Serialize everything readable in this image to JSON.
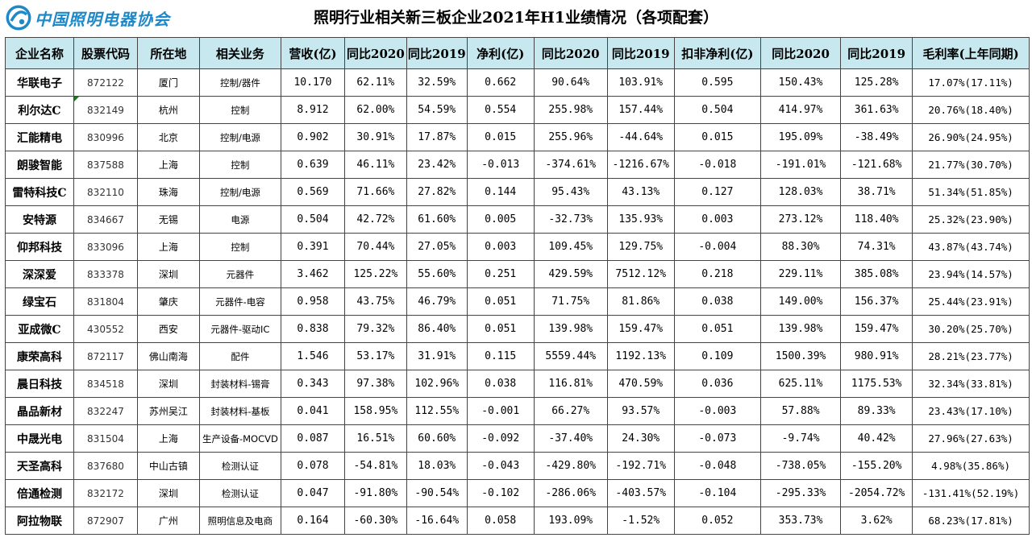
{
  "header": {
    "logo_text": "中国照明电器协会",
    "title": "照明行业相关新三板企业2021年H1业绩情况（各项配套）"
  },
  "colors": {
    "increase": "#ff0000",
    "decrease": "#0a8a0a",
    "header_bg": "#c6e8ee",
    "logo": "#1e88c8"
  },
  "columns": [
    "企业名称",
    "股票代码",
    "所在地",
    "相关业务",
    "营收(亿)",
    "同比2020",
    "同比2019",
    "净利(亿)",
    "同比2020",
    "同比2019",
    "扣非净利(亿)",
    "同比2020",
    "同比2019",
    "毛利率(上年同期)"
  ],
  "rows": [
    {
      "name": "华联电子",
      "code": "872122",
      "city": "厦门",
      "biz": "控制/器件",
      "rev": "10.170",
      "rev20": "62.11%",
      "rev19": "32.59%",
      "np": "0.662",
      "np20": "90.64%",
      "np19": "103.91%",
      "dnp": "0.595",
      "dnp20": "150.43%",
      "dnp19": "125.28%",
      "gm": "17.07%(17.11%)"
    },
    {
      "name": "利尔达C",
      "code": "832149",
      "city": "杭州",
      "biz": "控制",
      "rev": "8.912",
      "rev20": "62.00%",
      "rev19": "54.59%",
      "np": "0.554",
      "np20": "255.98%",
      "np19": "157.44%",
      "dnp": "0.504",
      "dnp20": "414.97%",
      "dnp19": "361.63%",
      "gm": "20.76%(18.40%)"
    },
    {
      "name": "汇能精电",
      "code": "830996",
      "city": "北京",
      "biz": "控制/电源",
      "rev": "0.902",
      "rev20": "30.91%",
      "rev19": "17.87%",
      "np": "0.015",
      "np20": "255.96%",
      "np19": "-44.64%",
      "dnp": "0.015",
      "dnp20": "195.09%",
      "dnp19": "-38.49%",
      "gm": "26.90%(24.95%)"
    },
    {
      "name": "朗骏智能",
      "code": "837588",
      "city": "上海",
      "biz": "控制",
      "rev": "0.639",
      "rev20": "46.11%",
      "rev19": "23.42%",
      "np": "-0.013",
      "np20": "-374.61%",
      "np19": "-1216.67%",
      "dnp": "-0.018",
      "dnp20": "-191.01%",
      "dnp19": "-121.68%",
      "gm": "21.77%(30.70%)"
    },
    {
      "name": "雷特科技C",
      "code": "832110",
      "city": "珠海",
      "biz": "控制/电源",
      "rev": "0.569",
      "rev20": "71.66%",
      "rev19": "27.82%",
      "np": "0.144",
      "np20": "95.43%",
      "np19": "43.13%",
      "dnp": "0.127",
      "dnp20": "128.03%",
      "dnp19": "38.71%",
      "gm": "51.34%(51.85%)"
    },
    {
      "name": "安特源",
      "code": "834667",
      "city": "无锡",
      "biz": "电源",
      "rev": "0.504",
      "rev20": "42.72%",
      "rev19": "61.60%",
      "np": "0.005",
      "np20": "-32.73%",
      "np19": "135.93%",
      "dnp": "0.003",
      "dnp20": "273.12%",
      "dnp19": "118.40%",
      "gm": "25.32%(23.90%)"
    },
    {
      "name": "仰邦科技",
      "code": "833096",
      "city": "上海",
      "biz": "控制",
      "rev": "0.391",
      "rev20": "70.44%",
      "rev19": "27.05%",
      "np": "0.003",
      "np20": "109.45%",
      "np19": "129.75%",
      "dnp": "-0.004",
      "dnp20": "88.30%",
      "dnp19": "74.31%",
      "gm": "43.87%(43.74%)"
    },
    {
      "name": "深深爱",
      "code": "833378",
      "city": "深圳",
      "biz": "元器件",
      "rev": "3.462",
      "rev20": "125.22%",
      "rev19": "55.60%",
      "np": "0.251",
      "np20": "429.59%",
      "np19": "7512.12%",
      "dnp": "0.218",
      "dnp20": "229.11%",
      "dnp19": "385.08%",
      "gm": "23.94%(14.57%)"
    },
    {
      "name": "绿宝石",
      "code": "831804",
      "city": "肇庆",
      "biz": "元器件-电容",
      "rev": "0.958",
      "rev20": "43.75%",
      "rev19": "46.79%",
      "np": "0.051",
      "np20": "71.75%",
      "np19": "81.86%",
      "dnp": "0.038",
      "dnp20": "149.00%",
      "dnp19": "156.37%",
      "gm": "25.44%(23.91%)"
    },
    {
      "name": "亚成微C",
      "code": "430552",
      "city": "西安",
      "biz": "元器件-驱动IC",
      "rev": "0.838",
      "rev20": "79.32%",
      "rev19": "86.40%",
      "np": "0.051",
      "np20": "139.98%",
      "np19": "159.47%",
      "dnp": "0.051",
      "dnp20": "139.98%",
      "dnp19": "159.47%",
      "gm": "30.20%(25.70%)"
    },
    {
      "name": "康荣高科",
      "code": "872117",
      "city": "佛山南海",
      "biz": "配件",
      "rev": "1.546",
      "rev20": "53.17%",
      "rev19": "31.91%",
      "np": "0.115",
      "np20": "5559.44%",
      "np19": "1192.13%",
      "dnp": "0.109",
      "dnp20": "1500.39%",
      "dnp19": "980.91%",
      "gm": "28.21%(23.77%)"
    },
    {
      "name": "晨日科技",
      "code": "834518",
      "city": "深圳",
      "biz": "封装材料-锡膏",
      "rev": "0.343",
      "rev20": "97.38%",
      "rev19": "102.96%",
      "np": "0.038",
      "np20": "116.81%",
      "np19": "470.59%",
      "dnp": "0.036",
      "dnp20": "625.11%",
      "dnp19": "1175.53%",
      "gm": "32.34%(33.81%)"
    },
    {
      "name": "晶品新材",
      "code": "832247",
      "city": "苏州吴江",
      "biz": "封装材料-基板",
      "rev": "0.041",
      "rev20": "158.95%",
      "rev19": "112.55%",
      "np": "-0.001",
      "np20": "66.27%",
      "np19": "93.57%",
      "dnp": "-0.003",
      "dnp20": "57.88%",
      "dnp19": "89.33%",
      "gm": "23.43%(17.10%)"
    },
    {
      "name": "中晟光电",
      "code": "831504",
      "city": "上海",
      "biz": "生产设备-MOCVD",
      "rev": "0.087",
      "rev20": "16.51%",
      "rev19": "60.60%",
      "np": "-0.092",
      "np20": "-37.40%",
      "np19": "24.30%",
      "dnp": "-0.073",
      "dnp20": "-9.74%",
      "dnp19": "40.42%",
      "gm": "27.96%(27.63%)"
    },
    {
      "name": "天圣高科",
      "code": "837680",
      "city": "中山古镇",
      "biz": "检测认证",
      "rev": "0.078",
      "rev20": "-54.81%",
      "rev19": "18.03%",
      "np": "-0.043",
      "np20": "-429.80%",
      "np19": "-192.71%",
      "dnp": "-0.048",
      "dnp20": "-738.05%",
      "dnp19": "-155.20%",
      "gm": "4.98%(35.86%)"
    },
    {
      "name": "倍通检测",
      "code": "832172",
      "city": "深圳",
      "biz": "检测认证",
      "rev": "0.047",
      "rev20": "-91.80%",
      "rev19": "-90.54%",
      "np": "-0.102",
      "np20": "-286.06%",
      "np19": "-403.57%",
      "dnp": "-0.104",
      "dnp20": "-295.33%",
      "dnp19": "-2054.72%",
      "gm": "-131.41%(52.19%)"
    },
    {
      "name": "阿拉物联",
      "code": "872907",
      "city": "广州",
      "biz": "照明信息及电商",
      "rev": "0.164",
      "rev20": "-60.30%",
      "rev19": "-16.64%",
      "np": "0.058",
      "np20": "193.09%",
      "np19": "-1.52%",
      "dnp": "0.052",
      "dnp20": "353.73%",
      "dnp19": "3.62%",
      "gm": "68.23%(17.81%)"
    }
  ]
}
